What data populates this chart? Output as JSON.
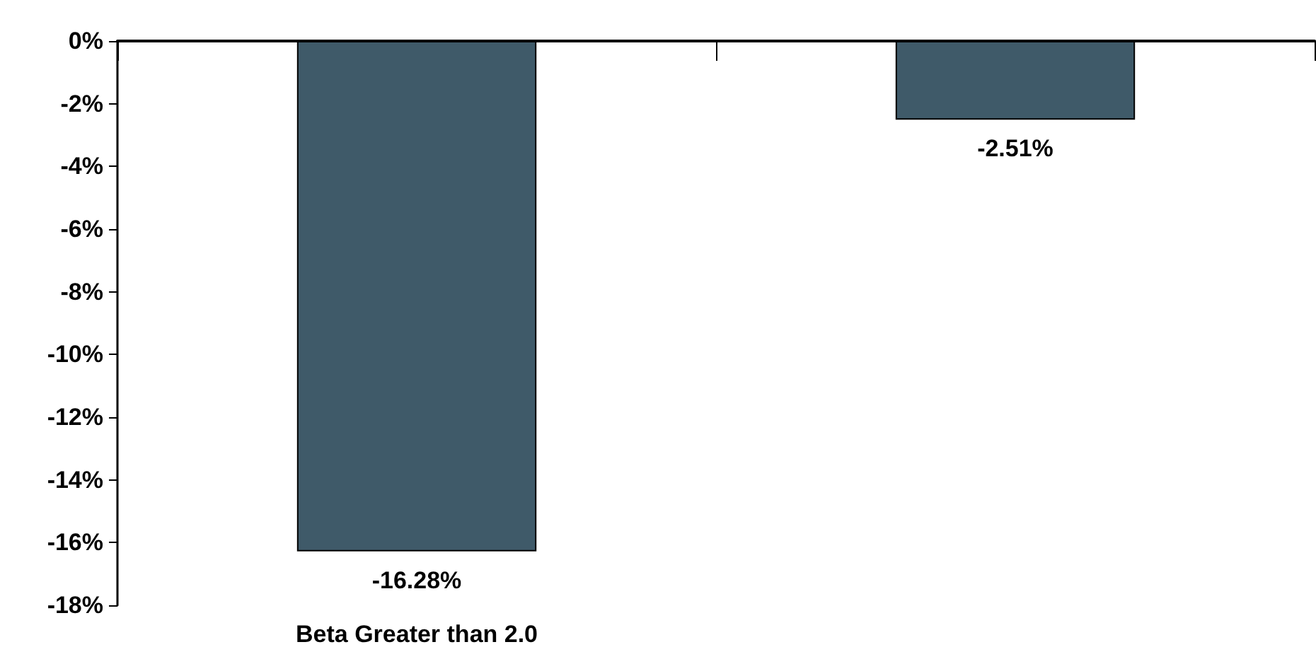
{
  "chart_data": {
    "type": "bar",
    "categories": [
      "Beta Greater than 2.0",
      null
    ],
    "values": [
      -16.28,
      -2.51
    ],
    "value_labels": [
      "-16.28%",
      "-2.51%"
    ],
    "color": "#3f5a69",
    "ylim": [
      -18,
      0
    ],
    "yticks": [
      {
        "value": 0,
        "label": "0%"
      },
      {
        "value": -2,
        "label": "-2%"
      },
      {
        "value": -4,
        "label": "-4%"
      },
      {
        "value": -6,
        "label": "-6%"
      },
      {
        "value": -8,
        "label": "-8%"
      },
      {
        "value": -10,
        "label": "-10%"
      },
      {
        "value": -12,
        "label": "-12%"
      },
      {
        "value": -14,
        "label": "-14%"
      },
      {
        "value": -16,
        "label": "-16%"
      },
      {
        "value": -18,
        "label": "-18%"
      }
    ],
    "grid": false
  }
}
